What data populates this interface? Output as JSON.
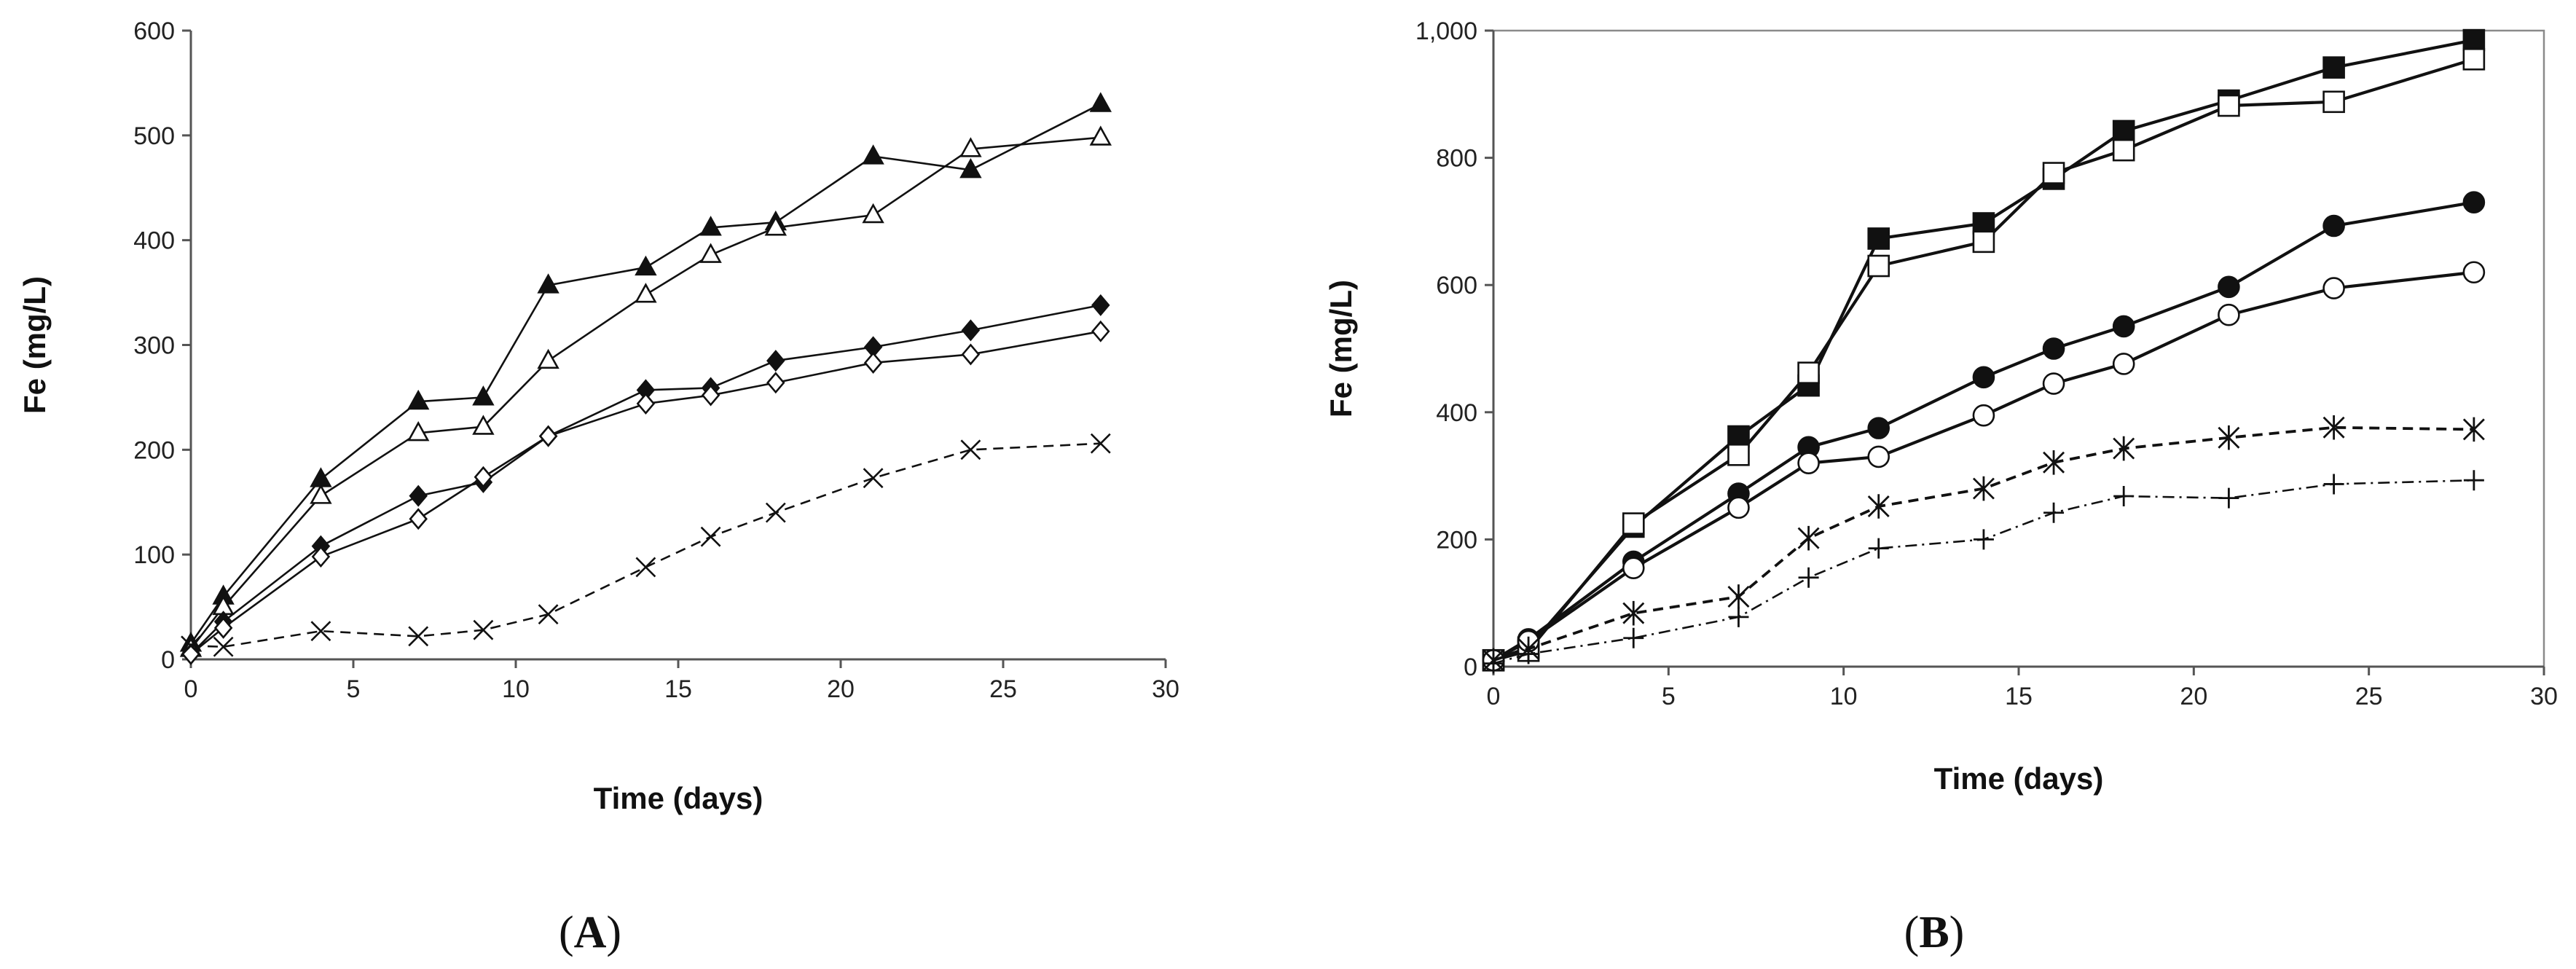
{
  "chart_data": [
    {
      "type": "line",
      "panel_label": "(A)",
      "panel_letter": "A",
      "xlabel": "Time  (days)",
      "ylabel": "Fe (mg/L)",
      "xlim": [
        0,
        30
      ],
      "ylim": [
        0,
        600
      ],
      "x_ticks": [
        0,
        5,
        10,
        15,
        20,
        25,
        30
      ],
      "y_ticks": [
        0,
        100,
        200,
        300,
        400,
        500,
        600
      ],
      "x_tick_labels": [
        "0",
        "5",
        "10",
        "15",
        "20",
        "25",
        "30"
      ],
      "y_tick_labels": [
        "0",
        "100",
        "200",
        "300",
        "400",
        "500",
        "600"
      ],
      "grid": false,
      "series": [
        {
          "name": "filled triangle",
          "marker": "triangle-filled",
          "line": "solid",
          "x": [
            0,
            1,
            4,
            7,
            9,
            11,
            14,
            16,
            18,
            21,
            24,
            28
          ],
          "y": [
            15,
            60,
            172,
            246,
            250,
            357,
            374,
            412,
            417,
            480,
            467,
            530
          ]
        },
        {
          "name": "open triangle",
          "marker": "triangle-open",
          "line": "solid",
          "x": [
            0,
            1,
            4,
            7,
            9,
            11,
            14,
            16,
            18,
            21,
            24,
            28
          ],
          "y": [
            10,
            50,
            156,
            216,
            222,
            285,
            348,
            386,
            412,
            424,
            487,
            498
          ]
        },
        {
          "name": "filled diamond",
          "marker": "diamond-filled",
          "line": "solid",
          "x": [
            0,
            1,
            4,
            7,
            9,
            11,
            14,
            16,
            18,
            21,
            24,
            28
          ],
          "y": [
            5,
            36,
            108,
            156,
            169,
            213,
            257,
            259,
            285,
            298,
            314,
            338
          ]
        },
        {
          "name": "open diamond",
          "marker": "diamond-open",
          "line": "solid",
          "x": [
            0,
            1,
            4,
            7,
            9,
            11,
            14,
            16,
            18,
            21,
            24,
            28
          ],
          "y": [
            5,
            30,
            98,
            134,
            174,
            213,
            244,
            252,
            264,
            283,
            291,
            313
          ]
        },
        {
          "name": "cross",
          "marker": "x",
          "line": "dashed",
          "x": [
            0,
            1,
            4,
            7,
            9,
            11,
            14,
            16,
            18,
            21,
            24,
            28
          ],
          "y": [
            13,
            12,
            27,
            22,
            28,
            43,
            88,
            117,
            140,
            173,
            200,
            206
          ]
        }
      ]
    },
    {
      "type": "line",
      "panel_label": "(B)",
      "panel_letter": "B",
      "xlabel": "Time  (days)",
      "ylabel": "Fe (mg/L)",
      "xlim": [
        0,
        30
      ],
      "ylim": [
        0,
        1000
      ],
      "x_ticks": [
        0,
        5,
        10,
        15,
        20,
        25,
        30
      ],
      "y_ticks": [
        0,
        200,
        400,
        600,
        800,
        1000
      ],
      "x_tick_labels": [
        "0",
        "5",
        "10",
        "15",
        "20",
        "25",
        "30"
      ],
      "y_tick_labels": [
        "0",
        "200",
        "400",
        "600",
        "800",
        "1,000"
      ],
      "grid": false,
      "series": [
        {
          "name": "filled square",
          "marker": "square-filled",
          "line": "solid-bold",
          "x": [
            0,
            1,
            4,
            7,
            9,
            11,
            14,
            16,
            18,
            21,
            24,
            28
          ],
          "y": [
            10,
            30,
            220,
            362,
            442,
            673,
            697,
            767,
            842,
            890,
            942,
            985
          ]
        },
        {
          "name": "open square",
          "marker": "square-open",
          "line": "solid-bold",
          "x": [
            0,
            1,
            4,
            7,
            9,
            11,
            14,
            16,
            18,
            21,
            24,
            28
          ],
          "y": [
            10,
            25,
            225,
            333,
            462,
            630,
            668,
            776,
            812,
            882,
            888,
            955
          ]
        },
        {
          "name": "filled circle",
          "marker": "circle-filled",
          "line": "solid-bold",
          "x": [
            0,
            1,
            4,
            7,
            9,
            11,
            14,
            16,
            18,
            21,
            24,
            28
          ],
          "y": [
            10,
            43,
            165,
            272,
            345,
            375,
            455,
            500,
            535,
            597,
            693,
            730
          ]
        },
        {
          "name": "open circle",
          "marker": "circle-open",
          "line": "solid-bold",
          "x": [
            0,
            1,
            4,
            7,
            9,
            11,
            14,
            16,
            18,
            21,
            24,
            28
          ],
          "y": [
            10,
            40,
            155,
            250,
            320,
            330,
            395,
            445,
            476,
            553,
            595,
            620
          ]
        },
        {
          "name": "asterisk",
          "marker": "asterisk",
          "line": "dashed-bold",
          "x": [
            0,
            1,
            4,
            7,
            9,
            11,
            14,
            16,
            18,
            21,
            24,
            28
          ],
          "y": [
            10,
            28,
            84,
            110,
            202,
            252,
            280,
            321,
            343,
            360,
            376,
            373
          ]
        },
        {
          "name": "plus",
          "marker": "plus",
          "line": "dashdot",
          "x": [
            0,
            1,
            4,
            7,
            9,
            11,
            14,
            16,
            18,
            21,
            24,
            28
          ],
          "y": [
            5,
            20,
            45,
            78,
            140,
            186,
            200,
            242,
            268,
            265,
            287,
            293
          ]
        }
      ]
    }
  ]
}
